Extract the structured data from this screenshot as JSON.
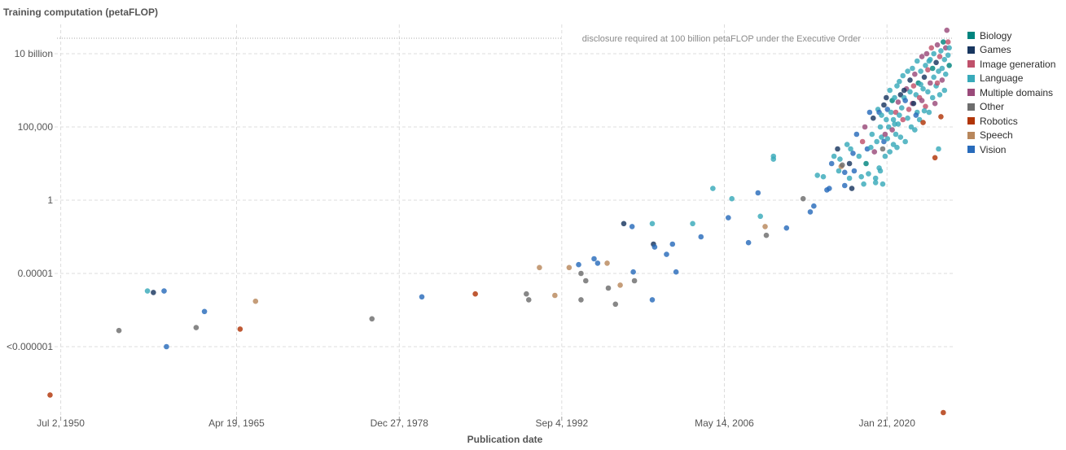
{
  "chart_data": {
    "type": "scatter",
    "title": "Training computation (petaFLOP)",
    "xlabel": "Publication date",
    "ylabel": "",
    "y_scale": "log",
    "ylim_exp": [
      -13,
      12
    ],
    "xlim_year": [
      1949.5,
      2025.6
    ],
    "x_ticks": [
      {
        "year": 1950.5,
        "label": "Jul 2, 1950"
      },
      {
        "year": 1965.3,
        "label": "Apr 19, 1965"
      },
      {
        "year": 1979.0,
        "label": "Dec 27, 1978"
      },
      {
        "year": 1992.68,
        "label": "Sep 4, 1992"
      },
      {
        "year": 2006.37,
        "label": "May 14, 2006"
      },
      {
        "year": 2020.06,
        "label": "Jan 21, 2020"
      }
    ],
    "y_ticks": [
      {
        "exp": 10,
        "label": "10 billion"
      },
      {
        "exp": 5,
        "label": "100,000"
      },
      {
        "exp": 0,
        "label": "1"
      },
      {
        "exp": -5,
        "label": "0.00001"
      },
      {
        "exp": -10,
        "label": "<0.000001"
      }
    ],
    "reference_line": {
      "exp": 11,
      "label": "disclosure required at 100 billion petaFLOP under the Executive Order"
    },
    "grid": true,
    "legend_position": "right",
    "categories": [
      {
        "name": "Biology",
        "color": "#00847e"
      },
      {
        "name": "Games",
        "color": "#18365f"
      },
      {
        "name": "Image generation",
        "color": "#c0516b"
      },
      {
        "name": "Language",
        "color": "#38aaba"
      },
      {
        "name": "Multiple domains",
        "color": "#9a4a7a"
      },
      {
        "name": "Other",
        "color": "#6d6d6d"
      },
      {
        "name": "Robotics",
        "color": "#b13507"
      },
      {
        "name": "Speech",
        "color": "#b8875c"
      },
      {
        "name": "Vision",
        "color": "#286bbb"
      }
    ],
    "points": [
      {
        "x": 1949.6,
        "y": -13.3,
        "c": 6
      },
      {
        "x": 1955.4,
        "y": -8.9,
        "c": 5
      },
      {
        "x": 1957.8,
        "y": -6.2,
        "c": 3
      },
      {
        "x": 1958.3,
        "y": -6.3,
        "c": 1
      },
      {
        "x": 1959.2,
        "y": -6.2,
        "c": 8
      },
      {
        "x": 1959.4,
        "y": -10.0,
        "c": 8
      },
      {
        "x": 1961.9,
        "y": -8.7,
        "c": 5
      },
      {
        "x": 1962.6,
        "y": -7.6,
        "c": 8
      },
      {
        "x": 1965.6,
        "y": -8.8,
        "c": 6
      },
      {
        "x": 1966.9,
        "y": -6.9,
        "c": 7
      },
      {
        "x": 1976.7,
        "y": -8.1,
        "c": 5
      },
      {
        "x": 1980.9,
        "y": -6.6,
        "c": 8
      },
      {
        "x": 1985.4,
        "y": -6.4,
        "c": 6
      },
      {
        "x": 1989.7,
        "y": -6.4,
        "c": 5
      },
      {
        "x": 1989.9,
        "y": -6.8,
        "c": 5
      },
      {
        "x": 1990.8,
        "y": -4.6,
        "c": 7
      },
      {
        "x": 1992.1,
        "y": -6.5,
        "c": 7
      },
      {
        "x": 1993.3,
        "y": -4.6,
        "c": 7
      },
      {
        "x": 1994.1,
        "y": -4.4,
        "c": 8
      },
      {
        "x": 1994.3,
        "y": -5.0,
        "c": 5
      },
      {
        "x": 1994.3,
        "y": -6.8,
        "c": 5
      },
      {
        "x": 1994.7,
        "y": -5.5,
        "c": 5
      },
      {
        "x": 1995.4,
        "y": -4.0,
        "c": 8
      },
      {
        "x": 1995.7,
        "y": -4.3,
        "c": 8
      },
      {
        "x": 1996.5,
        "y": -4.3,
        "c": 7
      },
      {
        "x": 1996.6,
        "y": -6.0,
        "c": 5
      },
      {
        "x": 1997.2,
        "y": -7.1,
        "c": 5
      },
      {
        "x": 1997.6,
        "y": -5.8,
        "c": 7
      },
      {
        "x": 1997.9,
        "y": -1.6,
        "c": 1
      },
      {
        "x": 1998.6,
        "y": -1.8,
        "c": 8
      },
      {
        "x": 1998.7,
        "y": -4.9,
        "c": 8
      },
      {
        "x": 1998.8,
        "y": -5.5,
        "c": 5
      },
      {
        "x": 2000.3,
        "y": -1.6,
        "c": 3
      },
      {
        "x": 2000.3,
        "y": -6.8,
        "c": 8
      },
      {
        "x": 2000.4,
        "y": -3.0,
        "c": 1
      },
      {
        "x": 2000.5,
        "y": -3.2,
        "c": 8
      },
      {
        "x": 2001.5,
        "y": -3.7,
        "c": 8
      },
      {
        "x": 2002.0,
        "y": -3.0,
        "c": 8
      },
      {
        "x": 2002.3,
        "y": -4.9,
        "c": 8
      },
      {
        "x": 2003.7,
        "y": -1.6,
        "c": 3
      },
      {
        "x": 2004.4,
        "y": -2.5,
        "c": 8
      },
      {
        "x": 2005.4,
        "y": 0.8,
        "c": 3
      },
      {
        "x": 2006.7,
        "y": -1.2,
        "c": 8
      },
      {
        "x": 2007.0,
        "y": 0.1,
        "c": 3
      },
      {
        "x": 2008.4,
        "y": -2.9,
        "c": 8
      },
      {
        "x": 2009.2,
        "y": 0.5,
        "c": 8
      },
      {
        "x": 2009.4,
        "y": -1.1,
        "c": 3
      },
      {
        "x": 2009.8,
        "y": -1.8,
        "c": 7
      },
      {
        "x": 2009.9,
        "y": -2.4,
        "c": 5
      },
      {
        "x": 2010.5,
        "y": 3.0,
        "c": 3
      },
      {
        "x": 2010.5,
        "y": 2.8,
        "c": 3
      },
      {
        "x": 2011.6,
        "y": -1.9,
        "c": 8
      },
      {
        "x": 2013.0,
        "y": 0.1,
        "c": 5
      },
      {
        "x": 2013.6,
        "y": -0.8,
        "c": 8
      },
      {
        "x": 2013.9,
        "y": -0.4,
        "c": 8
      },
      {
        "x": 2014.2,
        "y": 1.7,
        "c": 3
      },
      {
        "x": 2014.7,
        "y": 1.6,
        "c": 3
      },
      {
        "x": 2015.0,
        "y": 0.7,
        "c": 8
      },
      {
        "x": 2015.2,
        "y": 0.8,
        "c": 8
      },
      {
        "x": 2015.4,
        "y": 2.5,
        "c": 8
      },
      {
        "x": 2015.6,
        "y": 3.0,
        "c": 3
      },
      {
        "x": 2015.9,
        "y": 3.5,
        "c": 1
      },
      {
        "x": 2016.0,
        "y": 2.0,
        "c": 3
      },
      {
        "x": 2016.2,
        "y": 2.3,
        "c": 7
      },
      {
        "x": 2016.3,
        "y": 2.4,
        "c": 5
      },
      {
        "x": 2016.5,
        "y": 1.9,
        "c": 8
      },
      {
        "x": 2016.5,
        "y": 1.0,
        "c": 8
      },
      {
        "x": 2016.7,
        "y": 3.8,
        "c": 3
      },
      {
        "x": 2016.9,
        "y": 1.5,
        "c": 3
      },
      {
        "x": 2016.9,
        "y": 2.5,
        "c": 1
      },
      {
        "x": 2017.0,
        "y": 3.5,
        "c": 3
      },
      {
        "x": 2017.1,
        "y": 0.8,
        "c": 1
      },
      {
        "x": 2017.3,
        "y": 2.0,
        "c": 8
      },
      {
        "x": 2017.5,
        "y": 4.5,
        "c": 8
      },
      {
        "x": 2017.7,
        "y": 3.0,
        "c": 3
      },
      {
        "x": 2017.9,
        "y": 1.6,
        "c": 3
      },
      {
        "x": 2018.1,
        "y": 1.1,
        "c": 3
      },
      {
        "x": 2018.2,
        "y": 5.0,
        "c": 4
      },
      {
        "x": 2018.3,
        "y": 2.5,
        "c": 0
      },
      {
        "x": 2018.4,
        "y": 3.5,
        "c": 8
      },
      {
        "x": 2018.5,
        "y": 1.8,
        "c": 3
      },
      {
        "x": 2018.6,
        "y": 6.0,
        "c": 8
      },
      {
        "x": 2018.8,
        "y": 4.5,
        "c": 3
      },
      {
        "x": 2018.9,
        "y": 5.6,
        "c": 1
      },
      {
        "x": 2019.0,
        "y": 3.3,
        "c": 4
      },
      {
        "x": 2019.1,
        "y": 1.5,
        "c": 3
      },
      {
        "x": 2019.1,
        "y": 1.2,
        "c": 3
      },
      {
        "x": 2019.2,
        "y": 4.0,
        "c": 3
      },
      {
        "x": 2019.3,
        "y": 6.2,
        "c": 3
      },
      {
        "x": 2019.4,
        "y": 2.2,
        "c": 3
      },
      {
        "x": 2019.5,
        "y": 2.0,
        "c": 3
      },
      {
        "x": 2019.5,
        "y": 5.0,
        "c": 3
      },
      {
        "x": 2019.6,
        "y": 4.3,
        "c": 3
      },
      {
        "x": 2019.7,
        "y": 3.5,
        "c": 5
      },
      {
        "x": 2019.7,
        "y": 1.1,
        "c": 3
      },
      {
        "x": 2019.8,
        "y": 4.0,
        "c": 8
      },
      {
        "x": 2019.8,
        "y": 6.5,
        "c": 1
      },
      {
        "x": 2019.9,
        "y": 3.0,
        "c": 3
      },
      {
        "x": 2020.0,
        "y": 5.5,
        "c": 3
      },
      {
        "x": 2020.0,
        "y": 7.0,
        "c": 1
      },
      {
        "x": 2020.1,
        "y": 4.2,
        "c": 3
      },
      {
        "x": 2020.1,
        "y": 6.2,
        "c": 8
      },
      {
        "x": 2020.2,
        "y": 5.0,
        "c": 3
      },
      {
        "x": 2020.3,
        "y": 7.5,
        "c": 3
      },
      {
        "x": 2020.3,
        "y": 3.3,
        "c": 3
      },
      {
        "x": 2020.4,
        "y": 6.0,
        "c": 3
      },
      {
        "x": 2020.5,
        "y": 4.8,
        "c": 4
      },
      {
        "x": 2020.5,
        "y": 6.8,
        "c": 0
      },
      {
        "x": 2020.6,
        "y": 5.5,
        "c": 3
      },
      {
        "x": 2020.6,
        "y": 3.8,
        "c": 3
      },
      {
        "x": 2020.7,
        "y": 7.0,
        "c": 3
      },
      {
        "x": 2020.8,
        "y": 6.0,
        "c": 2
      },
      {
        "x": 2020.8,
        "y": 4.5,
        "c": 3
      },
      {
        "x": 2020.9,
        "y": 7.8,
        "c": 3
      },
      {
        "x": 2021.0,
        "y": 5.2,
        "c": 3
      },
      {
        "x": 2021.0,
        "y": 6.7,
        "c": 4
      },
      {
        "x": 2021.1,
        "y": 8.1,
        "c": 3
      },
      {
        "x": 2021.2,
        "y": 4.3,
        "c": 3
      },
      {
        "x": 2021.2,
        "y": 7.2,
        "c": 1
      },
      {
        "x": 2021.3,
        "y": 6.3,
        "c": 3
      },
      {
        "x": 2021.4,
        "y": 5.5,
        "c": 2
      },
      {
        "x": 2021.4,
        "y": 8.5,
        "c": 3
      },
      {
        "x": 2021.5,
        "y": 7.0,
        "c": 3
      },
      {
        "x": 2021.6,
        "y": 4.0,
        "c": 3
      },
      {
        "x": 2021.6,
        "y": 6.8,
        "c": 8
      },
      {
        "x": 2021.7,
        "y": 7.6,
        "c": 4
      },
      {
        "x": 2021.8,
        "y": 8.8,
        "c": 3
      },
      {
        "x": 2021.8,
        "y": 5.6,
        "c": 3
      },
      {
        "x": 2021.9,
        "y": 6.2,
        "c": 2
      },
      {
        "x": 2022.0,
        "y": 7.4,
        "c": 3
      },
      {
        "x": 2022.0,
        "y": 8.2,
        "c": 1
      },
      {
        "x": 2022.1,
        "y": 5.0,
        "c": 3
      },
      {
        "x": 2022.2,
        "y": 9.0,
        "c": 3
      },
      {
        "x": 2022.2,
        "y": 6.6,
        "c": 4
      },
      {
        "x": 2022.3,
        "y": 7.8,
        "c": 2
      },
      {
        "x": 2022.4,
        "y": 4.8,
        "c": 3
      },
      {
        "x": 2022.4,
        "y": 8.6,
        "c": 4
      },
      {
        "x": 2022.5,
        "y": 7.2,
        "c": 3
      },
      {
        "x": 2022.6,
        "y": 9.5,
        "c": 3
      },
      {
        "x": 2022.6,
        "y": 6.0,
        "c": 3
      },
      {
        "x": 2022.7,
        "y": 8.0,
        "c": 0
      },
      {
        "x": 2022.8,
        "y": 7.0,
        "c": 2
      },
      {
        "x": 2022.8,
        "y": 5.5,
        "c": 3
      },
      {
        "x": 2022.9,
        "y": 8.8,
        "c": 3
      },
      {
        "x": 2023.0,
        "y": 6.8,
        "c": 4
      },
      {
        "x": 2023.0,
        "y": 9.8,
        "c": 4
      },
      {
        "x": 2023.1,
        "y": 7.6,
        "c": 3
      },
      {
        "x": 2023.1,
        "y": 5.3,
        "c": 6
      },
      {
        "x": 2023.2,
        "y": 8.4,
        "c": 1
      },
      {
        "x": 2023.3,
        "y": 9.2,
        "c": 3
      },
      {
        "x": 2023.3,
        "y": 6.4,
        "c": 2
      },
      {
        "x": 2023.4,
        "y": 10.0,
        "c": 4
      },
      {
        "x": 2023.5,
        "y": 7.4,
        "c": 3
      },
      {
        "x": 2023.5,
        "y": 8.9,
        "c": 2
      },
      {
        "x": 2023.6,
        "y": 6.0,
        "c": 3
      },
      {
        "x": 2023.7,
        "y": 9.6,
        "c": 3
      },
      {
        "x": 2023.7,
        "y": 8.0,
        "c": 4
      },
      {
        "x": 2023.8,
        "y": 10.4,
        "c": 2
      },
      {
        "x": 2023.9,
        "y": 7.0,
        "c": 3
      },
      {
        "x": 2023.9,
        "y": 9.0,
        "c": 0
      },
      {
        "x": 2024.0,
        "y": 8.4,
        "c": 3
      },
      {
        "x": 2024.0,
        "y": 10.0,
        "c": 3
      },
      {
        "x": 2024.1,
        "y": 6.6,
        "c": 4
      },
      {
        "x": 2024.2,
        "y": 9.4,
        "c": 1
      },
      {
        "x": 2024.2,
        "y": 7.8,
        "c": 3
      },
      {
        "x": 2024.3,
        "y": 10.6,
        "c": 4
      },
      {
        "x": 2024.4,
        "y": 8.8,
        "c": 3
      },
      {
        "x": 2024.4,
        "y": 3.5,
        "c": 3
      },
      {
        "x": 2024.5,
        "y": 9.8,
        "c": 2
      },
      {
        "x": 2024.5,
        "y": 7.2,
        "c": 3
      },
      {
        "x": 2024.6,
        "y": 10.2,
        "c": 3
      },
      {
        "x": 2024.7,
        "y": 8.2,
        "c": 4
      },
      {
        "x": 2024.7,
        "y": 9.0,
        "c": 3
      },
      {
        "x": 2024.8,
        "y": 10.8,
        "c": 0
      },
      {
        "x": 2024.9,
        "y": 9.6,
        "c": 3
      },
      {
        "x": 2025.0,
        "y": 10.4,
        "c": 4
      },
      {
        "x": 2025.0,
        "y": 8.6,
        "c": 3
      },
      {
        "x": 2025.1,
        "y": 11.6,
        "c": 4
      },
      {
        "x": 2025.2,
        "y": 9.9,
        "c": 3
      },
      {
        "x": 2025.2,
        "y": 10.8,
        "c": 2
      },
      {
        "x": 2025.3,
        "y": 9.2,
        "c": 0
      },
      {
        "x": 2025.3,
        "y": 10.4,
        "c": 3
      },
      {
        "x": 2024.9,
        "y": 7.5,
        "c": 3
      },
      {
        "x": 2024.1,
        "y": 2.9,
        "c": 6
      },
      {
        "x": 2024.6,
        "y": 5.7,
        "c": 6
      },
      {
        "x": 2024.8,
        "y": -14.5,
        "c": 6
      },
      {
        "x": 2022.3,
        "y": 6.6,
        "c": 1
      },
      {
        "x": 2021.1,
        "y": 5.8,
        "c": 3
      },
      {
        "x": 2020.9,
        "y": 3.6,
        "c": 3
      },
      {
        "x": 2019.4,
        "y": 6.0,
        "c": 8
      },
      {
        "x": 2018.0,
        "y": 4.0,
        "c": 2
      },
      {
        "x": 2017.2,
        "y": 3.2,
        "c": 8
      },
      {
        "x": 2016.1,
        "y": 2.8,
        "c": 3
      },
      {
        "x": 2023.6,
        "y": 9.5,
        "c": 3
      },
      {
        "x": 2024.3,
        "y": 8.0,
        "c": 2
      },
      {
        "x": 2022.9,
        "y": 7.9,
        "c": 3
      },
      {
        "x": 2021.5,
        "y": 7.5,
        "c": 1
      },
      {
        "x": 2020.7,
        "y": 5.2,
        "c": 3
      },
      {
        "x": 2019.9,
        "y": 4.5,
        "c": 4
      },
      {
        "x": 2018.7,
        "y": 3.6,
        "c": 3
      },
      {
        "x": 2019.6,
        "y": 5.8,
        "c": 3
      },
      {
        "x": 2023.2,
        "y": 6.1,
        "c": 3
      },
      {
        "x": 2022.5,
        "y": 5.8,
        "c": 8
      }
    ]
  }
}
